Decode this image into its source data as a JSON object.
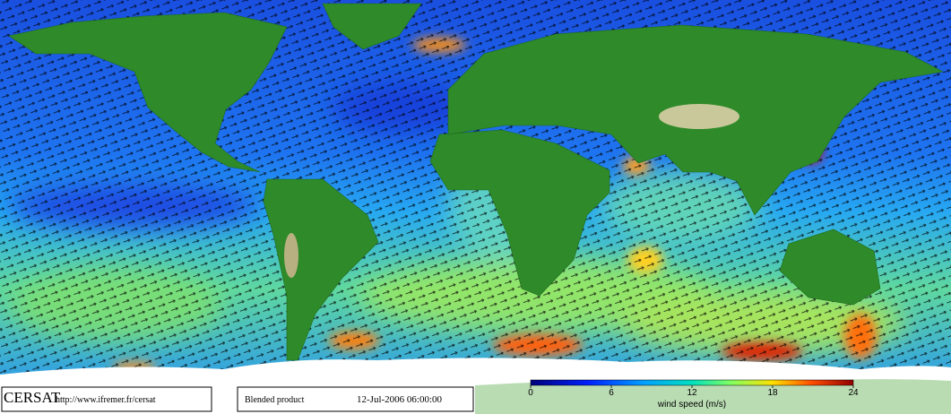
{
  "footer": {
    "logo": "CERSAT",
    "url": "http://www.ifremer.fr/cersat",
    "product": "Blended product",
    "timestamp": "12-Jul-2006 06:00:00"
  },
  "colorbar": {
    "label": "wind speed (m/s)",
    "lim": [
      0,
      24
    ],
    "ticks": [
      0,
      6,
      12,
      18,
      24
    ]
  }
}
